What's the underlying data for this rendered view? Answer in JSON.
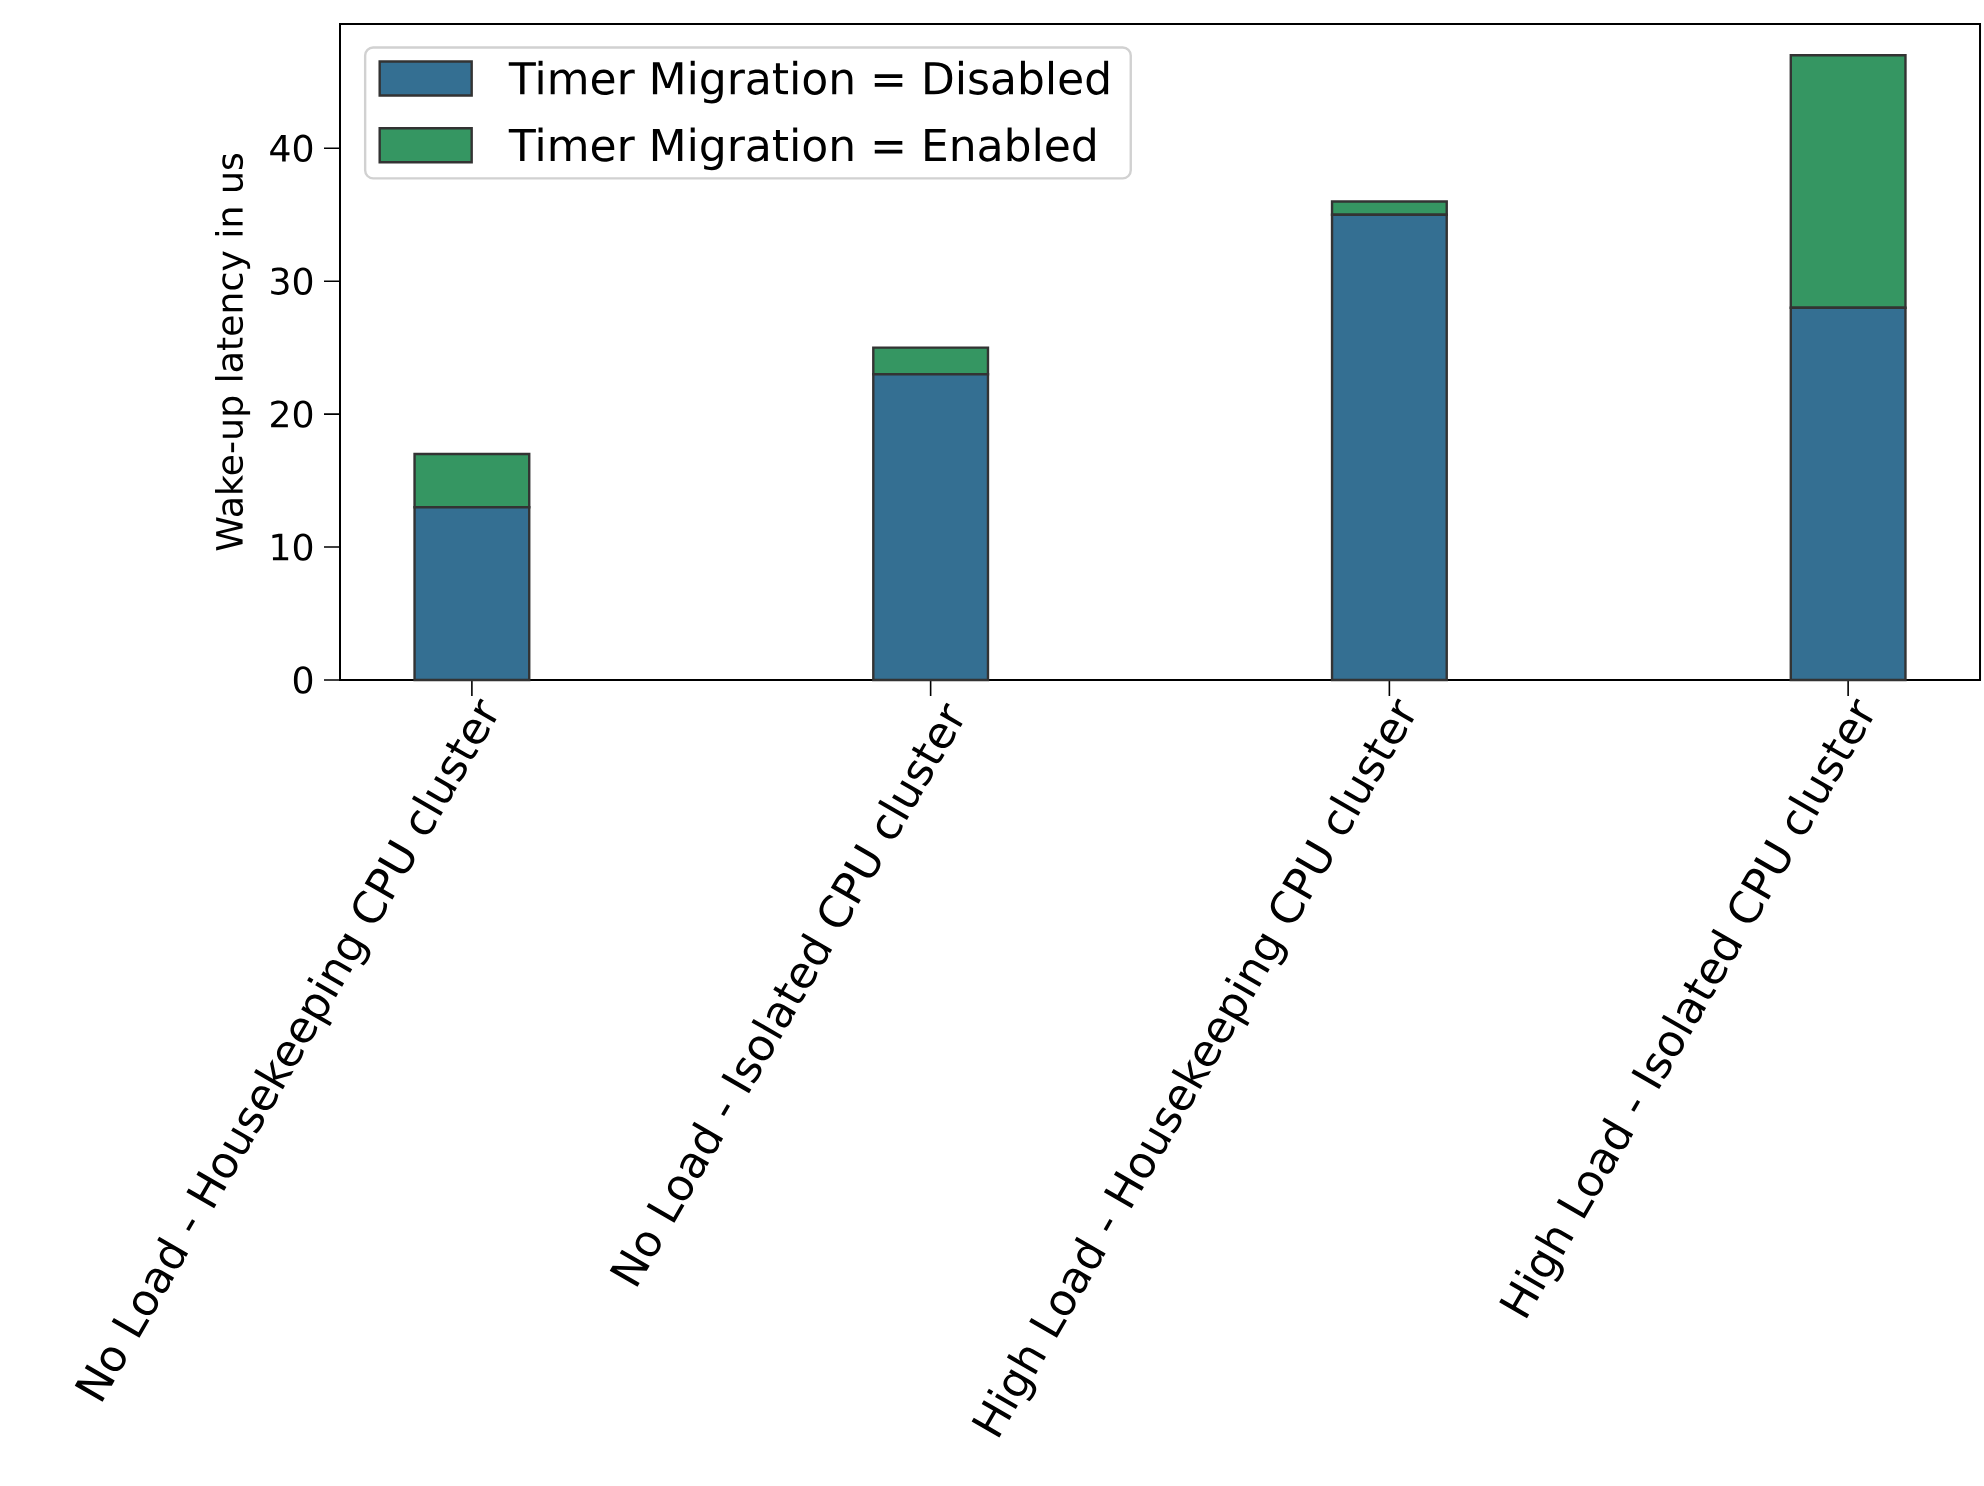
{
  "chart_data": {
    "type": "bar",
    "stacked": true,
    "categories": [
      "No Load - Housekeeping CPU cluster",
      "No Load - Isolated CPU cluster",
      "High Load - Housekeeping CPU cluster",
      "High Load - Isolated CPU cluster"
    ],
    "series": [
      {
        "name": "Timer Migration = Disabled",
        "color": "#346f92",
        "values": [
          13,
          23,
          35,
          28
        ]
      },
      {
        "name": "Timer Migration = Enabled",
        "color": "#359662",
        "values": [
          4,
          2,
          1,
          19
        ]
      }
    ],
    "ylabel": "Wake-up latency in us",
    "ylim": [
      0,
      49.35
    ],
    "yticks": [
      0,
      10,
      20,
      30,
      40
    ],
    "legend": "top left"
  }
}
